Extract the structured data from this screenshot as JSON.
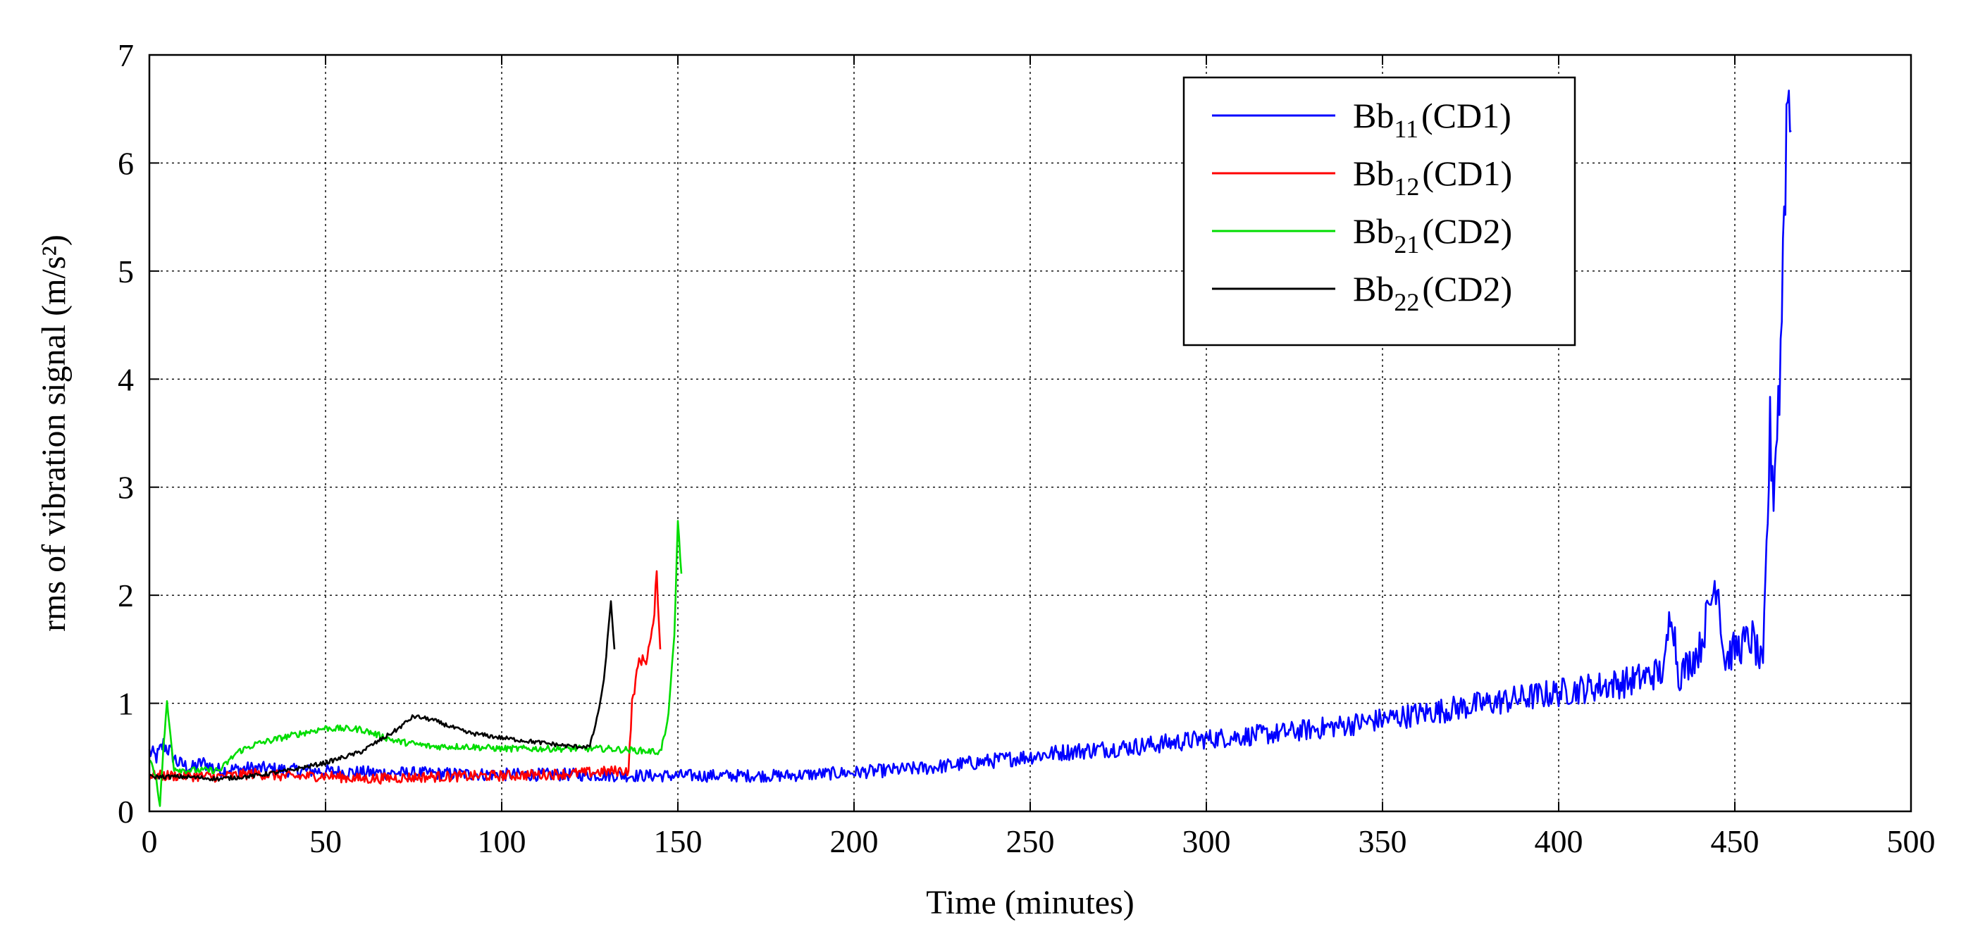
{
  "chart_data": {
    "type": "line",
    "title": "",
    "xlabel": "Time (minutes)",
    "ylabel": "rms of vibration signal (m/s²)",
    "xlim": [
      0,
      500
    ],
    "ylim": [
      0,
      7
    ],
    "x_ticks": [
      "0",
      "50",
      "100",
      "150",
      "200",
      "250",
      "300",
      "350",
      "400",
      "450",
      "500"
    ],
    "y_ticks": [
      "0",
      "1",
      "2",
      "3",
      "4",
      "5",
      "6",
      "7"
    ],
    "grid": true,
    "legend_position": "top-right",
    "series": [
      {
        "name": "Bb11(CD1)",
        "label_base": "Bb",
        "label_sub": "11",
        "label_suffix": "(CD1)",
        "color": "#0000ff",
        "points": [
          [
            0,
            0.55
          ],
          [
            2,
            0.5
          ],
          [
            4,
            0.62
          ],
          [
            6,
            0.55
          ],
          [
            8,
            0.45
          ],
          [
            12,
            0.4
          ],
          [
            15,
            0.45
          ],
          [
            20,
            0.38
          ],
          [
            30,
            0.4
          ],
          [
            40,
            0.38
          ],
          [
            60,
            0.36
          ],
          [
            80,
            0.35
          ],
          [
            100,
            0.34
          ],
          [
            120,
            0.34
          ],
          [
            140,
            0.33
          ],
          [
            160,
            0.33
          ],
          [
            180,
            0.33
          ],
          [
            200,
            0.36
          ],
          [
            220,
            0.4
          ],
          [
            240,
            0.47
          ],
          [
            260,
            0.55
          ],
          [
            280,
            0.6
          ],
          [
            300,
            0.67
          ],
          [
            320,
            0.72
          ],
          [
            340,
            0.8
          ],
          [
            360,
            0.9
          ],
          [
            380,
            1.0
          ],
          [
            400,
            1.1
          ],
          [
            420,
            1.2
          ],
          [
            430,
            1.3
          ],
          [
            432,
            1.95
          ],
          [
            434,
            1.25
          ],
          [
            440,
            1.5
          ],
          [
            445,
            2.2
          ],
          [
            447,
            1.4
          ],
          [
            450,
            1.5
          ],
          [
            455,
            1.6
          ],
          [
            458,
            1.3
          ],
          [
            459,
            2.4
          ],
          [
            460,
            3.5
          ],
          [
            461,
            3.0
          ],
          [
            463,
            4.2
          ],
          [
            464,
            5.7
          ],
          [
            465,
            6.7
          ],
          [
            466,
            6.3
          ]
        ],
        "noise": 0.1,
        "noise_grows": true
      },
      {
        "name": "Bb12(CD1)",
        "label_base": "Bb",
        "label_sub": "12",
        "label_suffix": "(CD1)",
        "color": "#ff0000",
        "points": [
          [
            0,
            0.33
          ],
          [
            10,
            0.33
          ],
          [
            20,
            0.32
          ],
          [
            30,
            0.35
          ],
          [
            40,
            0.32
          ],
          [
            50,
            0.33
          ],
          [
            60,
            0.3
          ],
          [
            80,
            0.32
          ],
          [
            100,
            0.33
          ],
          [
            120,
            0.35
          ],
          [
            136,
            0.38
          ],
          [
            137,
            1.0
          ],
          [
            139,
            1.4
          ],
          [
            141,
            1.4
          ],
          [
            143,
            1.7
          ],
          [
            144,
            2.2
          ],
          [
            145,
            1.5
          ]
        ],
        "noise": 0.05,
        "noise_grows": false
      },
      {
        "name": "Bb21(CD2)",
        "label_base": "Bb",
        "label_sub": "21",
        "label_suffix": "(CD2)",
        "color": "#00dd00",
        "points": [
          [
            0,
            0.5
          ],
          [
            2,
            0.3
          ],
          [
            3,
            0.05
          ],
          [
            4,
            0.6
          ],
          [
            5,
            1.0
          ],
          [
            7,
            0.4
          ],
          [
            10,
            0.38
          ],
          [
            20,
            0.38
          ],
          [
            25,
            0.55
          ],
          [
            30,
            0.62
          ],
          [
            40,
            0.7
          ],
          [
            50,
            0.77
          ],
          [
            60,
            0.76
          ],
          [
            70,
            0.65
          ],
          [
            80,
            0.6
          ],
          [
            90,
            0.6
          ],
          [
            100,
            0.58
          ],
          [
            110,
            0.58
          ],
          [
            120,
            0.58
          ],
          [
            130,
            0.58
          ],
          [
            145,
            0.55
          ],
          [
            147,
            0.8
          ],
          [
            149,
            1.6
          ],
          [
            150,
            2.7
          ],
          [
            151,
            2.2
          ]
        ],
        "noise": 0.03,
        "noise_grows": false
      },
      {
        "name": "Bb22(CD2)",
        "label_base": "Bb",
        "label_sub": "22",
        "label_suffix": "(CD2)",
        "color": "#000000",
        "points": [
          [
            0,
            0.32
          ],
          [
            10,
            0.32
          ],
          [
            20,
            0.3
          ],
          [
            30,
            0.33
          ],
          [
            40,
            0.38
          ],
          [
            50,
            0.45
          ],
          [
            60,
            0.55
          ],
          [
            70,
            0.75
          ],
          [
            75,
            0.88
          ],
          [
            80,
            0.85
          ],
          [
            90,
            0.73
          ],
          [
            100,
            0.68
          ],
          [
            110,
            0.64
          ],
          [
            120,
            0.6
          ],
          [
            125,
            0.6
          ],
          [
            127,
            0.85
          ],
          [
            129,
            1.2
          ],
          [
            131,
            1.95
          ],
          [
            132,
            1.5
          ]
        ],
        "noise": 0.02,
        "noise_grows": false
      }
    ]
  }
}
